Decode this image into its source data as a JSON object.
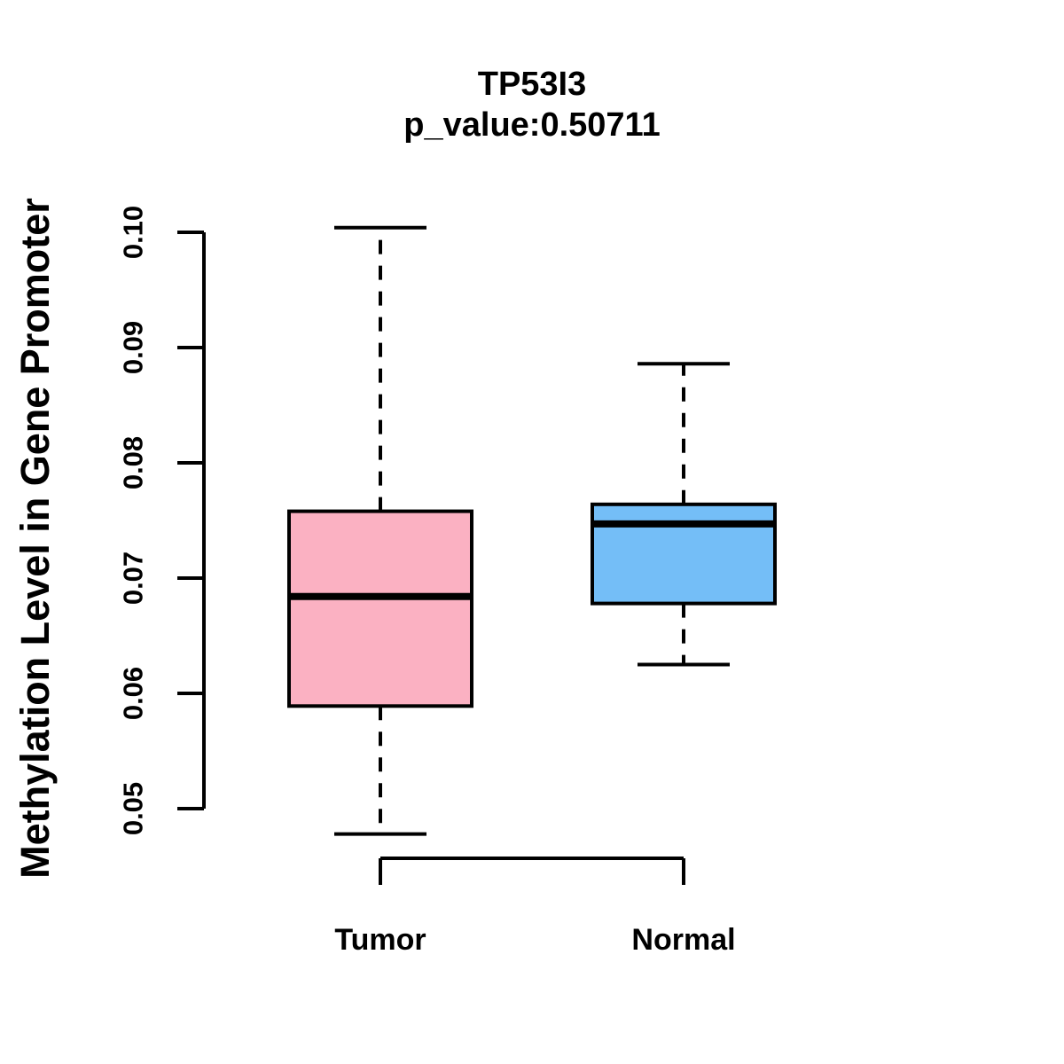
{
  "chart": {
    "title": "TP53I3",
    "subtitle": "p_value:0.50711",
    "ylabel": "Methylation Level in Gene Promoter"
  },
  "chart_data": {
    "type": "boxplot",
    "title": "TP53I3",
    "subtitle": "p_value:0.50711",
    "p_value": 0.50711,
    "gene": "TP53I3",
    "ylabel": "Methylation Level in Gene Promoter",
    "xlabel": "",
    "ylim": [
      0.05,
      0.1
    ],
    "y_ticks": [
      0.05,
      0.06,
      0.07,
      0.08,
      0.09,
      0.1
    ],
    "y_tick_labels": [
      "0.05",
      "0.06",
      "0.07",
      "0.08",
      "0.09",
      "0.10"
    ],
    "grid": false,
    "legend": "none",
    "categories": [
      "Tumor",
      "Normal"
    ],
    "series": [
      {
        "name": "Tumor",
        "whisker_low": 0.0478,
        "q1": 0.0589,
        "median": 0.0684,
        "q3": 0.0758,
        "whisker_high": 0.1004,
        "fill": "#FBB1C2"
      },
      {
        "name": "Normal",
        "whisker_low": 0.0625,
        "q1": 0.0678,
        "median": 0.0747,
        "q3": 0.0764,
        "whisker_high": 0.0886,
        "fill": "#74BEF7"
      }
    ],
    "colors": {
      "tumor_fill": "#FBB1C2",
      "normal_fill": "#74BEF7",
      "ink": "#000000",
      "background": "#FFFFFF"
    }
  }
}
